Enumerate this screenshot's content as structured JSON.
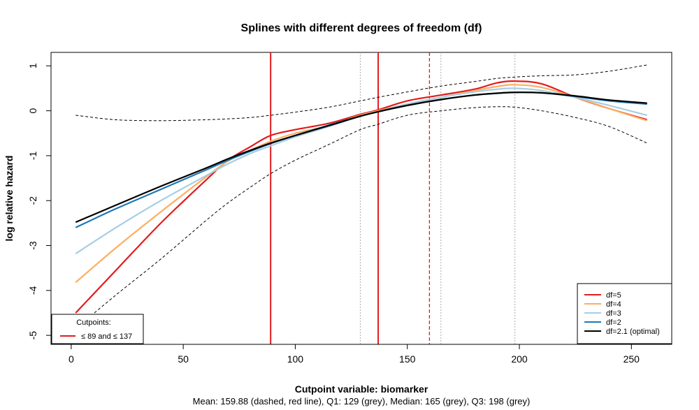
{
  "chart_data": {
    "type": "line",
    "title": "Splines with different degrees of freedom (df)",
    "xlabel": "Cutpoint variable:  biomarker",
    "subtitle": "Mean: 159.88 (dashed, red line),  Q1: 129 (grey),  Median: 165 (grey),  Q3: 198 (grey)",
    "ylabel": "log relative hazard",
    "xlim": [
      -9,
      268
    ],
    "ylim": [
      -5.2,
      1.3
    ],
    "x_ticks": [
      0,
      50,
      100,
      150,
      200,
      250
    ],
    "y_ticks": [
      1,
      0,
      -1,
      -2,
      -3,
      -4,
      -5
    ],
    "x": [
      2,
      20,
      40,
      60,
      70,
      80,
      89,
      100,
      115,
      129,
      137,
      150,
      165,
      180,
      190,
      198,
      210,
      225,
      240,
      257
    ],
    "series": [
      {
        "name": "df=5",
        "color": "#e31a1c",
        "width": 2.2,
        "values": [
          -4.5,
          -3.55,
          -2.5,
          -1.55,
          -1.1,
          -0.8,
          -0.55,
          -0.42,
          -0.28,
          -0.08,
          0.02,
          0.22,
          0.35,
          0.48,
          0.62,
          0.66,
          0.6,
          0.3,
          0.05,
          -0.2
        ]
      },
      {
        "name": "df=4",
        "color": "#fdae61",
        "width": 2.2,
        "values": [
          -3.82,
          -3.05,
          -2.25,
          -1.48,
          -1.12,
          -0.88,
          -0.68,
          -0.5,
          -0.33,
          -0.1,
          0.0,
          0.15,
          0.3,
          0.45,
          0.54,
          0.58,
          0.52,
          0.3,
          0.05,
          -0.22
        ]
      },
      {
        "name": "df=3",
        "color": "#a6cee3",
        "width": 2.2,
        "values": [
          -3.18,
          -2.6,
          -2.0,
          -1.45,
          -1.18,
          -0.95,
          -0.78,
          -0.58,
          -0.35,
          -0.12,
          -0.02,
          0.15,
          0.3,
          0.42,
          0.48,
          0.5,
          0.45,
          0.3,
          0.12,
          -0.1
        ]
      },
      {
        "name": "df=2",
        "color": "#1f78b4",
        "width": 2.2,
        "values": [
          -2.6,
          -2.18,
          -1.75,
          -1.32,
          -1.1,
          -0.9,
          -0.73,
          -0.55,
          -0.32,
          -0.12,
          -0.02,
          0.12,
          0.25,
          0.35,
          0.39,
          0.41,
          0.4,
          0.32,
          0.22,
          0.15
        ]
      },
      {
        "name": "df=2.1 (optimal)",
        "color": "#000000",
        "width": 2.2,
        "values": [
          -2.48,
          -2.1,
          -1.68,
          -1.28,
          -1.07,
          -0.88,
          -0.72,
          -0.55,
          -0.33,
          -0.12,
          -0.02,
          0.12,
          0.25,
          0.35,
          0.39,
          0.41,
          0.4,
          0.33,
          0.24,
          0.17
        ]
      }
    ],
    "ci_bands": [
      {
        "color": "#000000",
        "dash": true,
        "values": [
          -0.1,
          -0.2,
          -0.22,
          -0.2,
          -0.18,
          -0.15,
          -0.1,
          -0.03,
          0.08,
          0.22,
          0.3,
          0.42,
          0.55,
          0.65,
          0.72,
          0.75,
          0.78,
          0.8,
          0.88,
          1.02
        ]
      },
      {
        "color": "#000000",
        "dash": true,
        "values": [
          -4.85,
          -4.1,
          -3.3,
          -2.45,
          -2.05,
          -1.7,
          -1.4,
          -1.1,
          -0.75,
          -0.42,
          -0.3,
          -0.1,
          0.0,
          0.07,
          0.09,
          0.08,
          0.0,
          -0.15,
          -0.35,
          -0.72
        ]
      }
    ],
    "vlines": [
      {
        "x": 89,
        "color": "#e31a1c",
        "style": "solid",
        "width": 2
      },
      {
        "x": 137,
        "color": "#e31a1c",
        "style": "solid",
        "width": 2
      },
      {
        "x": 159.88,
        "color": "#e31a1c",
        "style": "dashed",
        "width": 1.3
      },
      {
        "x": 129,
        "color": "#aaaaaa",
        "style": "dotted",
        "width": 1
      },
      {
        "x": 165,
        "color": "#aaaaaa",
        "style": "dotted",
        "width": 1
      },
      {
        "x": 198,
        "color": "#aaaaaa",
        "style": "dotted",
        "width": 1
      }
    ],
    "legend_cutpoints": {
      "title": "Cutpoints:",
      "label": "≤ 89 and ≤ 137",
      "color": "#e31a1c",
      "position": "bottom-left"
    },
    "legend_position": "bottom-right"
  }
}
